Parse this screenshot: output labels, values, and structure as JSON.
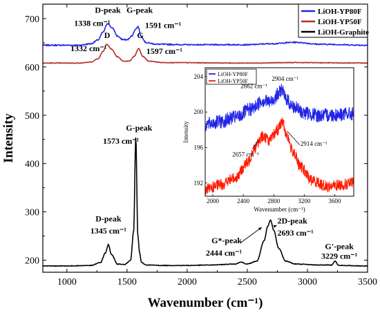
{
  "chart_data": {
    "type": "line",
    "xlabel": "Wavenumber (cm⁻¹)",
    "ylabel": "Intensity",
    "xlim": [
      800,
      3500
    ],
    "ylim": [
      175,
      730
    ],
    "xticks": [
      1000,
      1500,
      2000,
      2500,
      3000,
      3500
    ],
    "yticks": [
      200,
      300,
      400,
      500,
      600,
      700
    ],
    "legend_position": "top-right",
    "series": [
      {
        "name": "LiOH-YP80F",
        "color": "#1f24e6",
        "x": [
          800,
          1100,
          1200,
          1260,
          1300,
          1338,
          1380,
          1420,
          1460,
          1500,
          1540,
          1570,
          1591,
          1620,
          1660,
          1750,
          2000,
          2500,
          2700,
          2900,
          3100,
          3500
        ],
        "y": [
          645,
          645,
          648,
          656,
          672,
          690,
          680,
          664,
          657,
          656,
          664,
          678,
          683,
          662,
          650,
          647,
          646,
          646,
          648,
          651,
          647,
          645
        ]
      },
      {
        "name": "LiOH-YP50F",
        "color": "#b42a1e",
        "x": [
          800,
          1100,
          1200,
          1260,
          1300,
          1332,
          1370,
          1420,
          1470,
          1520,
          1560,
          1597,
          1630,
          1680,
          1800,
          2500,
          2900,
          3500
        ],
        "y": [
          608,
          608,
          610,
          617,
          632,
          647,
          637,
          621,
          612,
          612,
          622,
          638,
          622,
          612,
          609,
          608,
          609,
          608
        ]
      },
      {
        "name": "LiOH-Graphite",
        "color": "#000000",
        "x": [
          800,
          1000,
          1200,
          1280,
          1320,
          1345,
          1370,
          1420,
          1480,
          1530,
          1555,
          1573,
          1590,
          1605,
          1620,
          1660,
          1800,
          2000,
          2200,
          2400,
          2444,
          2500,
          2580,
          2640,
          2670,
          2693,
          2720,
          2760,
          2820,
          2900,
          3100,
          3200,
          3229,
          3260,
          3500
        ],
        "y": [
          188,
          188,
          189,
          195,
          215,
          232,
          212,
          192,
          191,
          200,
          260,
          455,
          250,
          215,
          195,
          190,
          189,
          189,
          190,
          192,
          196,
          192,
          198,
          240,
          270,
          283,
          262,
          225,
          198,
          192,
          190,
          190,
          198,
          189,
          188
        ]
      }
    ],
    "annotations": [
      {
        "text": "D-peak",
        "series": "LiOH-YP80F"
      },
      {
        "text": "1338 cm⁻¹",
        "series": "LiOH-YP80F"
      },
      {
        "text": "G-peak",
        "series": "LiOH-YP80F"
      },
      {
        "text": "1591 cm⁻¹",
        "series": "LiOH-YP80F"
      },
      {
        "text": "D",
        "series": "LiOH-YP50F"
      },
      {
        "text": "1332 cm⁻¹",
        "series": "LiOH-YP50F"
      },
      {
        "text": "G",
        "series": "LiOH-YP50F"
      },
      {
        "text": "1597 cm⁻¹",
        "series": "LiOH-YP50F"
      },
      {
        "text": "G-peak",
        "series": "LiOH-Graphite"
      },
      {
        "text": "1573 cm⁻¹",
        "series": "LiOH-Graphite"
      },
      {
        "text": "D-peak",
        "series": "LiOH-Graphite"
      },
      {
        "text": "1345 cm⁻¹",
        "series": "LiOH-Graphite"
      },
      {
        "text": "G*-peak",
        "series": "LiOH-Graphite"
      },
      {
        "text": "2444 cm⁻¹",
        "series": "LiOH-Graphite"
      },
      {
        "text": "2D-peak",
        "series": "LiOH-Graphite"
      },
      {
        "text": "2693 cm⁻¹",
        "series": "LiOH-Graphite"
      },
      {
        "text": "G'-peak",
        "series": "LiOH-Graphite"
      },
      {
        "text": "3229 cm⁻¹",
        "series": "LiOH-Graphite"
      }
    ],
    "inset": {
      "type": "line",
      "xlabel": "Wavenumber (cm⁻¹)",
      "ylabel": "Intensity",
      "xlim": [
        1900,
        3850
      ],
      "ylim": [
        190.5,
        205
      ],
      "xticks": [
        2000,
        2400,
        2800,
        3200,
        3600
      ],
      "yticks": [
        192,
        196,
        200,
        204
      ],
      "legend_position": "top-left",
      "series": [
        {
          "name": "LiOH-YP80F",
          "color": "#1f24e6",
          "x": [
            1900,
            2100,
            2300,
            2500,
            2662,
            2750,
            2850,
            2904,
            2950,
            3050,
            3200,
            3400,
            3600,
            3850
          ],
          "y": [
            198.6,
            198.9,
            199.4,
            200.3,
            201.3,
            201.1,
            201.9,
            202.6,
            201.6,
            200.6,
            199.9,
            199.6,
            199.7,
            199.8
          ]
        },
        {
          "name": "LiOH-YP50F",
          "color": "#ff1a00",
          "x": [
            1900,
            2100,
            2300,
            2450,
            2550,
            2657,
            2750,
            2850,
            2914,
            2960,
            3050,
            3150,
            3300,
            3500,
            3700,
            3850
          ],
          "y": [
            191.2,
            191.8,
            192.6,
            194.2,
            196.0,
            197.3,
            196.8,
            198.0,
            198.9,
            197.6,
            195.6,
            193.8,
            192.3,
            191.6,
            191.8,
            192.0
          ]
        }
      ],
      "annotations": [
        {
          "text": "2662 cm⁻¹",
          "series": "LiOH-YP80F"
        },
        {
          "text": "2904 cm⁻¹",
          "series": "LiOH-YP80F"
        },
        {
          "text": "2657 cm⁻¹",
          "series": "LiOH-YP50F"
        },
        {
          "text": "2914 cm⁻¹",
          "series": "LiOH-YP50F"
        }
      ]
    }
  }
}
